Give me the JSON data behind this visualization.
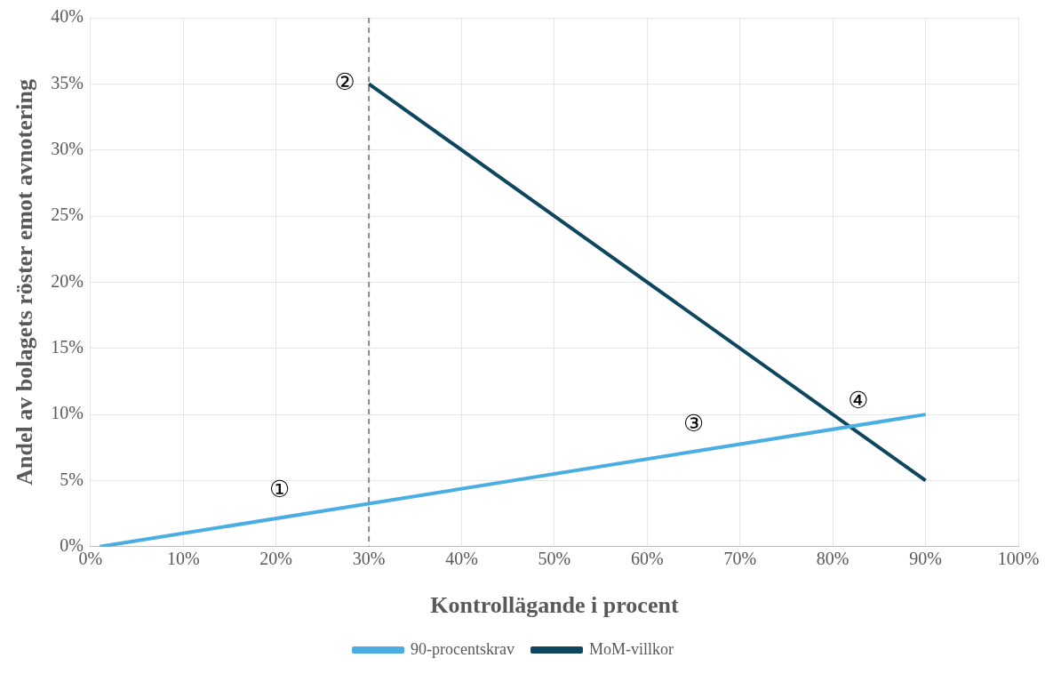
{
  "chart_data": {
    "type": "line",
    "xlabel": "Kontrollägande i procent",
    "ylabel": "Andel av bolagets röster emot avnotering",
    "series": [
      {
        "name": "90-procentskrav",
        "color": "#4aaee3",
        "x": [
          1,
          90
        ],
        "values": [
          0,
          10
        ]
      },
      {
        "name": "MoM-villkor",
        "color": "#0e4660",
        "x": [
          30,
          90
        ],
        "values": [
          35,
          5
        ]
      }
    ],
    "xlim": [
      0,
      100
    ],
    "xticks": [
      {
        "value": 0,
        "label": "0%"
      },
      {
        "value": 10,
        "label": "10%"
      },
      {
        "value": 20,
        "label": "20%"
      },
      {
        "value": 30,
        "label": "30%"
      },
      {
        "value": 40,
        "label": "40%"
      },
      {
        "value": 50,
        "label": "50%"
      },
      {
        "value": 60,
        "label": "60%"
      },
      {
        "value": 70,
        "label": "70%"
      },
      {
        "value": 80,
        "label": "80%"
      },
      {
        "value": 90,
        "label": "90%"
      },
      {
        "value": 100,
        "label": "100%"
      }
    ],
    "ylim": [
      0,
      40
    ],
    "yticks": [
      {
        "value": 0,
        "label": "0%"
      },
      {
        "value": 5,
        "label": "5%"
      },
      {
        "value": 10,
        "label": "10%"
      },
      {
        "value": 15,
        "label": "15%"
      },
      {
        "value": 20,
        "label": "20%"
      },
      {
        "value": 25,
        "label": "25%"
      },
      {
        "value": 30,
        "label": "30%"
      },
      {
        "value": 35,
        "label": "35%"
      },
      {
        "value": 40,
        "label": "40%"
      }
    ],
    "ref_lines": [
      {
        "axis": "x",
        "value": 30,
        "color": "#888888",
        "line_style": "dashed"
      }
    ],
    "annotations": [
      {
        "text": "①",
        "x": 20,
        "y": 2.1
      },
      {
        "text": "②",
        "x": 30,
        "y": 35
      },
      {
        "text": "③",
        "x": 65,
        "y": 7.2
      },
      {
        "text": "④",
        "x": 81.8,
        "y": 9.2
      }
    ],
    "grid": true,
    "legend": "bottom",
    "marker": "none",
    "line_style": "solid"
  }
}
